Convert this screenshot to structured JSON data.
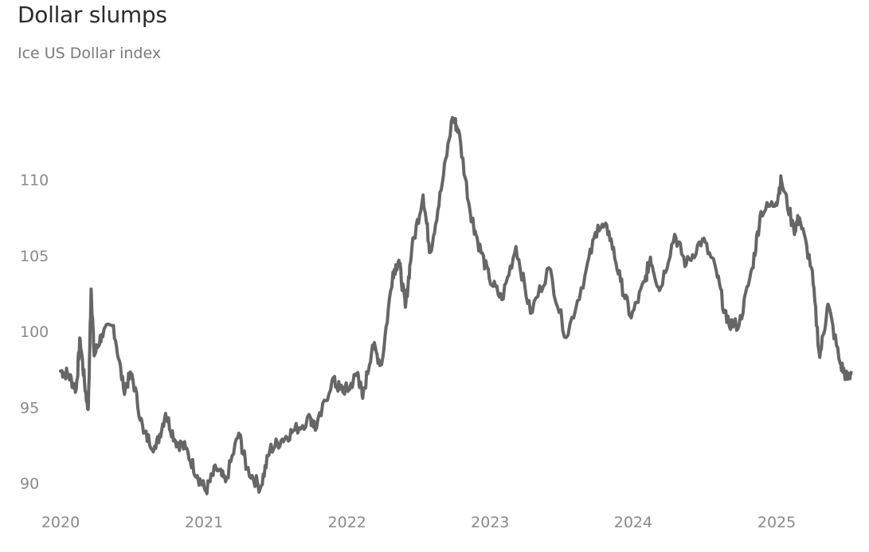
{
  "title": "Dollar slumps",
  "subtitle": "Ice US Dollar index",
  "chart_data": {
    "type": "line",
    "title": "Dollar slumps",
    "subtitle": "Ice US Dollar index",
    "xlabel": "",
    "ylabel": "",
    "x_ticks": [
      "2020",
      "2021",
      "2022",
      "2023",
      "2024",
      "2025"
    ],
    "y_ticks": [
      90,
      95,
      100,
      105,
      110
    ],
    "ylim": [
      89.3,
      114.5
    ],
    "xlim": [
      "2020-01-01",
      "2025-07-15"
    ],
    "grid": false,
    "legend": "none",
    "line_color": "#666666",
    "series": [
      {
        "values": [
          [
            "2020-01-01",
            97.4
          ],
          [
            "2020-01-20",
            97.2
          ],
          [
            "2020-02-10",
            96.2
          ],
          [
            "2020-02-20",
            99.5
          ],
          [
            "2020-03-05",
            96.0
          ],
          [
            "2020-03-12",
            95.0
          ],
          [
            "2020-03-19",
            102.8
          ],
          [
            "2020-03-27",
            98.4
          ],
          [
            "2020-04-15",
            99.8
          ],
          [
            "2020-05-15",
            100.4
          ],
          [
            "2020-06-10",
            96.2
          ],
          [
            "2020-07-01",
            97.2
          ],
          [
            "2020-07-31",
            93.3
          ],
          [
            "2020-08-31",
            92.3
          ],
          [
            "2020-09-25",
            94.6
          ],
          [
            "2020-10-20",
            92.8
          ],
          [
            "2020-11-15",
            92.3
          ],
          [
            "2020-12-15",
            90.5
          ],
          [
            "2021-01-06",
            89.5
          ],
          [
            "2021-02-01",
            91.0
          ],
          [
            "2021-02-25",
            90.1
          ],
          [
            "2021-03-31",
            93.3
          ],
          [
            "2021-04-20",
            91.0
          ],
          [
            "2021-05-25",
            89.7
          ],
          [
            "2021-06-18",
            92.2
          ],
          [
            "2021-07-20",
            92.9
          ],
          [
            "2021-08-20",
            93.5
          ],
          [
            "2021-09-30",
            94.3
          ],
          [
            "2021-10-15",
            93.6
          ],
          [
            "2021-11-24",
            96.8
          ],
          [
            "2021-12-15",
            96.2
          ],
          [
            "2022-01-05",
            96.2
          ],
          [
            "2022-01-28",
            97.3
          ],
          [
            "2022-02-10",
            95.6
          ],
          [
            "2022-03-07",
            99.1
          ],
          [
            "2022-03-30",
            97.8
          ],
          [
            "2022-04-28",
            103.9
          ],
          [
            "2022-05-13",
            104.7
          ],
          [
            "2022-05-30",
            101.6
          ],
          [
            "2022-06-15",
            105.4
          ],
          [
            "2022-07-14",
            109.0
          ],
          [
            "2022-08-01",
            105.2
          ],
          [
            "2022-08-29",
            109.3
          ],
          [
            "2022-09-27",
            114.1
          ],
          [
            "2022-10-12",
            113.3
          ],
          [
            "2022-11-10",
            108.1
          ],
          [
            "2022-11-30",
            106.0
          ],
          [
            "2022-12-30",
            103.5
          ],
          [
            "2023-01-31",
            102.1
          ],
          [
            "2023-03-08",
            105.6
          ],
          [
            "2023-04-14",
            101.2
          ],
          [
            "2023-05-31",
            104.2
          ],
          [
            "2023-07-14",
            99.6
          ],
          [
            "2023-08-31",
            103.7
          ],
          [
            "2023-10-03",
            107.0
          ],
          [
            "2023-10-31",
            106.6
          ],
          [
            "2023-11-30",
            103.3
          ],
          [
            "2023-12-27",
            100.9
          ],
          [
            "2024-01-31",
            103.3
          ],
          [
            "2024-02-14",
            104.9
          ],
          [
            "2024-03-08",
            102.7
          ],
          [
            "2024-04-16",
            106.4
          ],
          [
            "2024-05-15",
            104.4
          ],
          [
            "2024-06-26",
            106.1
          ],
          [
            "2024-07-31",
            104.0
          ],
          [
            "2024-08-27",
            100.6
          ],
          [
            "2024-09-27",
            100.4
          ],
          [
            "2024-10-31",
            104.2
          ],
          [
            "2024-11-22",
            107.9
          ],
          [
            "2024-12-31",
            108.5
          ],
          [
            "2025-01-13",
            110.0
          ],
          [
            "2025-02-14",
            106.7
          ],
          [
            "2025-02-28",
            107.5
          ],
          [
            "2025-03-31",
            104.2
          ],
          [
            "2025-04-21",
            98.3
          ],
          [
            "2025-05-12",
            101.8
          ],
          [
            "2025-06-12",
            97.9
          ],
          [
            "2025-06-30",
            96.9
          ],
          [
            "2025-07-10",
            97.3
          ]
        ]
      }
    ]
  }
}
